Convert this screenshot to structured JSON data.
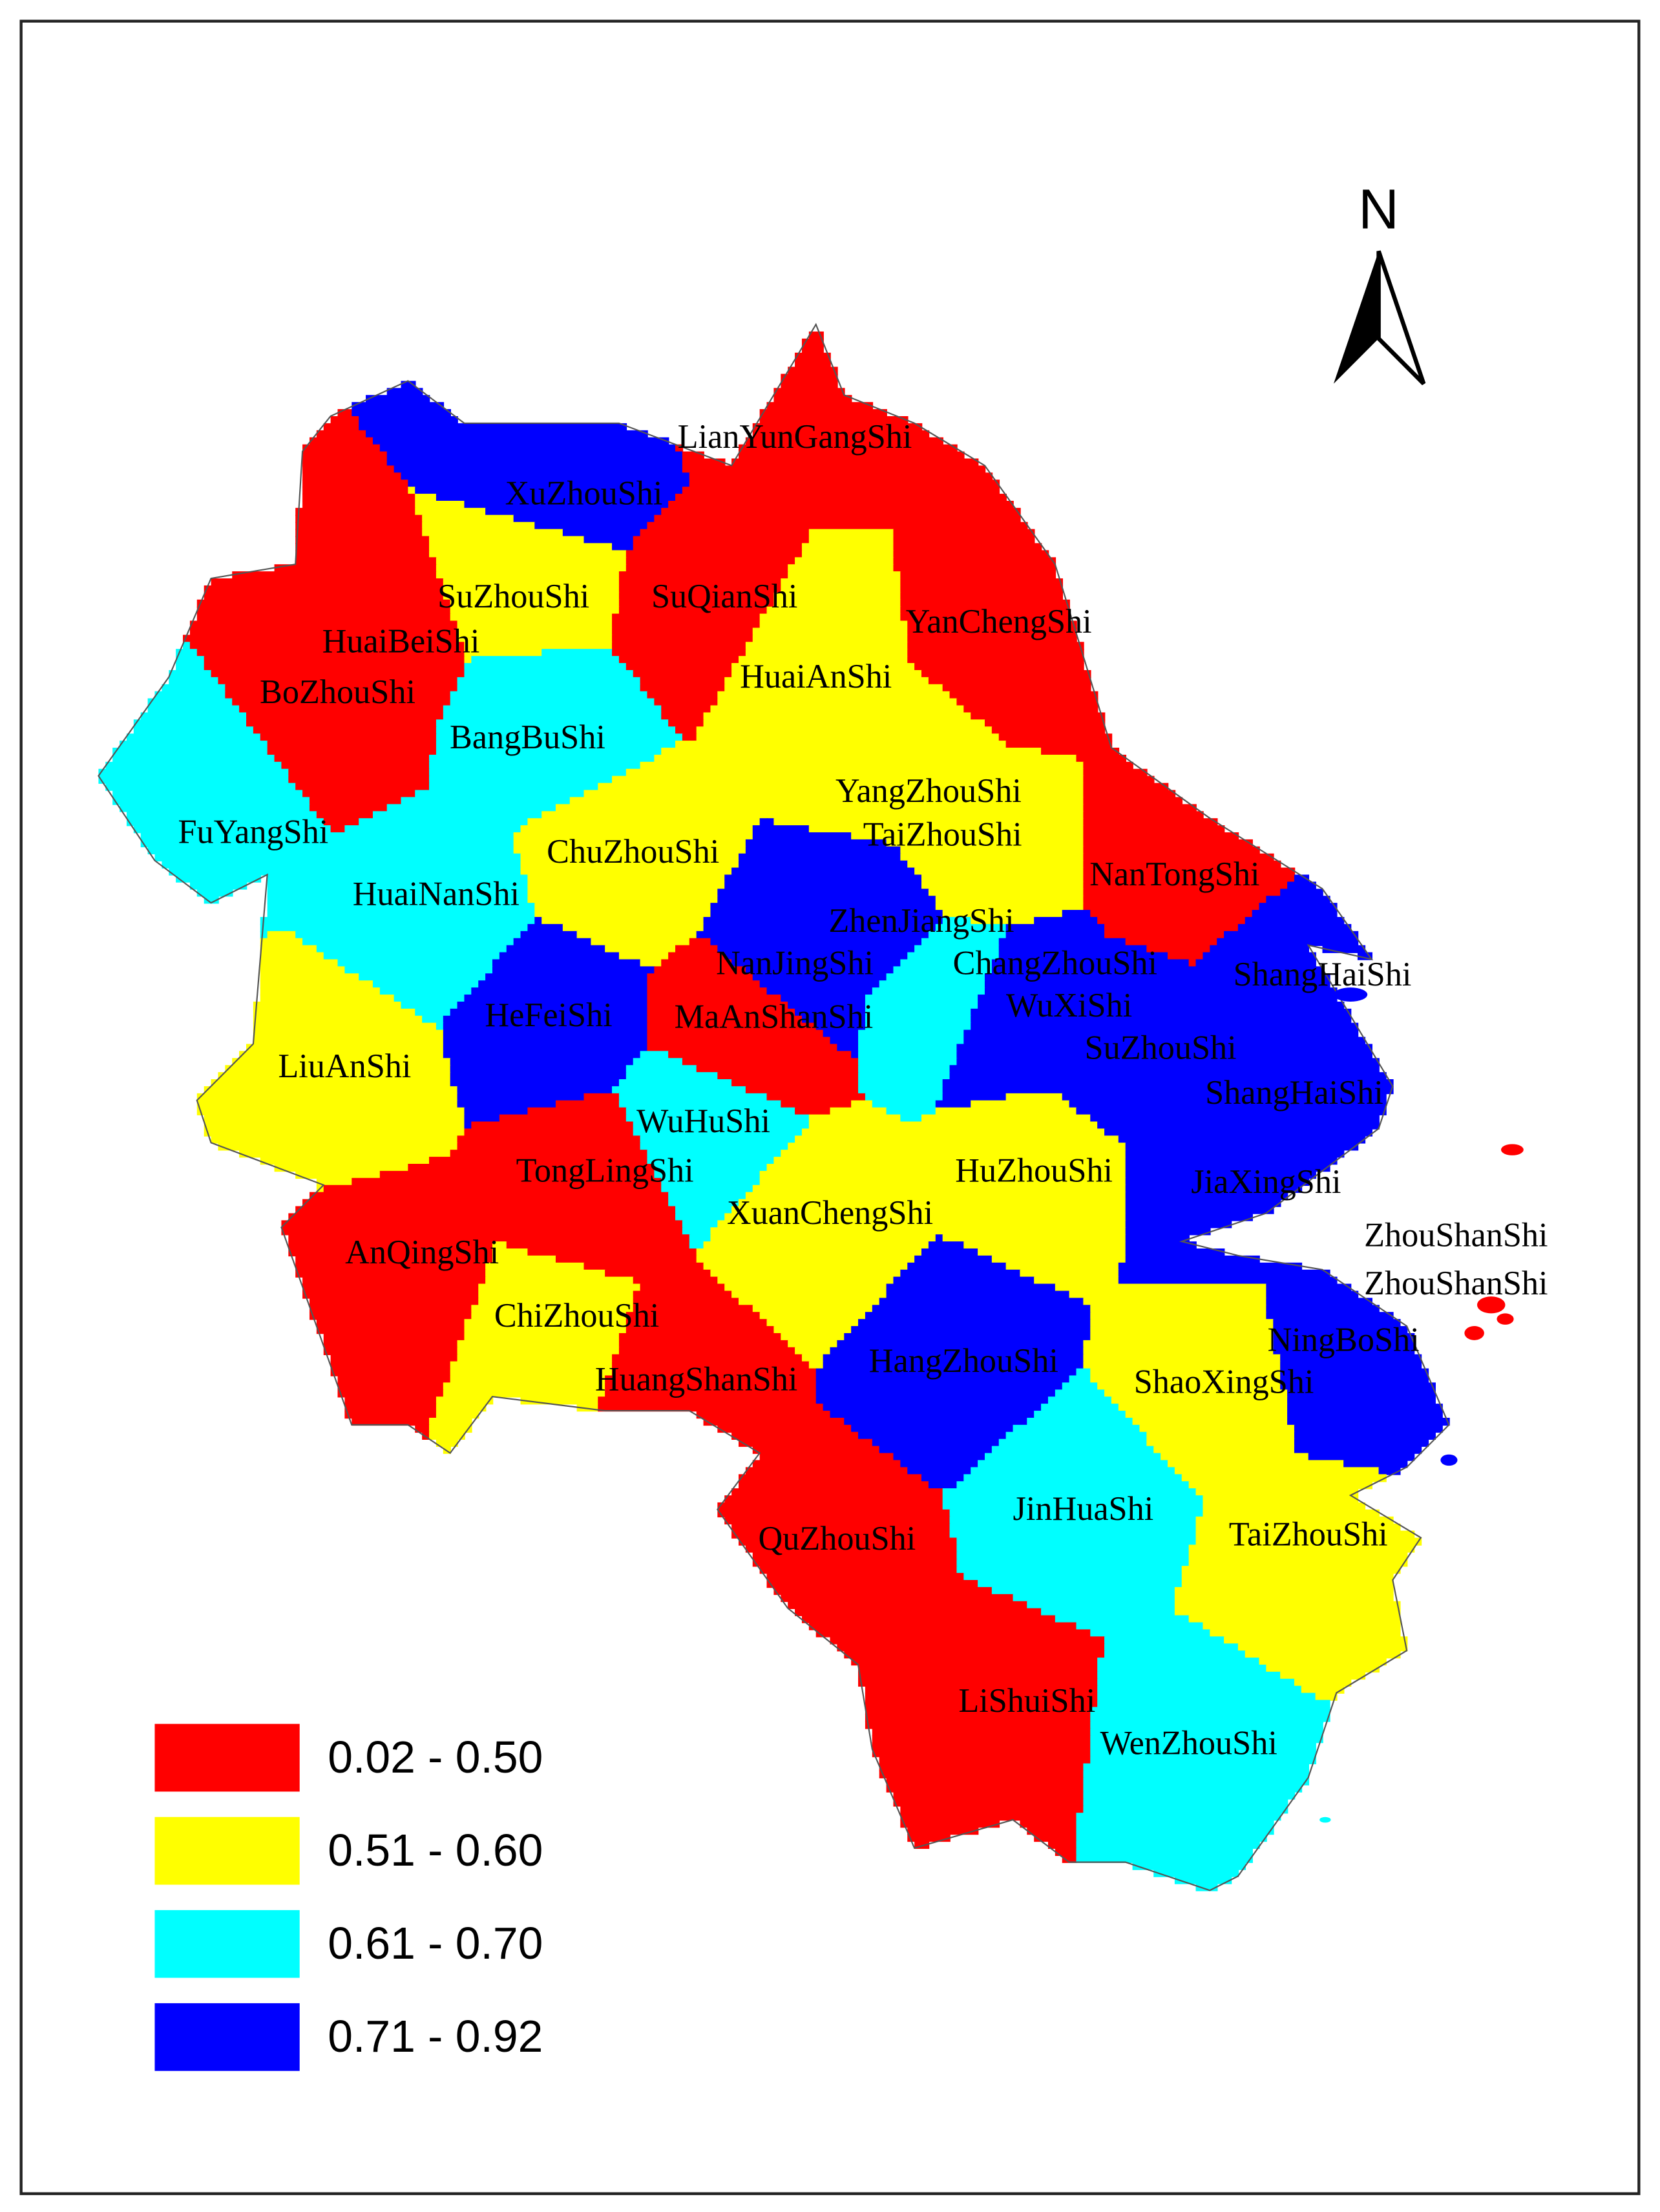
{
  "north": "N",
  "legend": [
    {
      "label": "0.02 - 0.50",
      "color": "#ff0000"
    },
    {
      "label": "0.51 - 0.60",
      "color": "#ffff00"
    },
    {
      "label": "0.61 - 0.70",
      "color": "#00ffff"
    },
    {
      "label": "0.71 - 0.92",
      "color": "#0000ff"
    }
  ],
  "regions": [
    {
      "name": "LianYunGangShi",
      "class": 0
    },
    {
      "name": "XuZhouShi",
      "class": 3
    },
    {
      "name": "SuZhouShi",
      "class": 1
    },
    {
      "name": "SuQianShi",
      "class": 0
    },
    {
      "name": "HuaiBeiShi",
      "class": 0
    },
    {
      "name": "YanChengShi",
      "class": 0
    },
    {
      "name": "HuaiAnShi",
      "class": 1
    },
    {
      "name": "BoZhouShi",
      "class": 0
    },
    {
      "name": "BangBuShi",
      "class": 2
    },
    {
      "name": "YangZhouShi",
      "class": 1
    },
    {
      "name": "FuYangShi",
      "class": 2
    },
    {
      "name": "TaiZhouShi",
      "class": 1
    },
    {
      "name": "ChuZhouShi",
      "class": 1
    },
    {
      "name": "NanTongShi",
      "class": 0
    },
    {
      "name": "HuaiNanShi",
      "class": 2
    },
    {
      "name": "ZhenJiangShi",
      "class": 3
    },
    {
      "name": "NanJingShi",
      "class": 3
    },
    {
      "name": "ChangZhouShi",
      "class": 2
    },
    {
      "name": "ShangHaiShi",
      "class": 3
    },
    {
      "name": "WuXiShi",
      "class": 3
    },
    {
      "name": "HeFeiShi",
      "class": 3
    },
    {
      "name": "MaAnShanShi",
      "class": 0
    },
    {
      "name": "SuZhouShi",
      "class": 3
    },
    {
      "name": "LiuAnShi",
      "class": 1
    },
    {
      "name": "ShangHaiShi",
      "class": 3
    },
    {
      "name": "WuHuShi",
      "class": 2
    },
    {
      "name": "TongLingShi",
      "class": 0
    },
    {
      "name": "HuZhouShi",
      "class": 1
    },
    {
      "name": "JiaXingShi",
      "class": 3
    },
    {
      "name": "XuanChengShi",
      "class": 1
    },
    {
      "name": "ZhouShanShi",
      "class": 0
    },
    {
      "name": "ZhouShanShi",
      "class": 0
    },
    {
      "name": "AnQingShi",
      "class": 0
    },
    {
      "name": "ChiZhouShi",
      "class": 1
    },
    {
      "name": "NingBoShi",
      "class": 3
    },
    {
      "name": "HangZhouShi",
      "class": 3
    },
    {
      "name": "HuangShanShi",
      "class": 0
    },
    {
      "name": "ShaoXingShi",
      "class": 1
    },
    {
      "name": "JinHuaShi",
      "class": 2
    },
    {
      "name": "TaiZhouShi",
      "class": 1
    },
    {
      "name": "QuZhouShi",
      "class": 0
    },
    {
      "name": "LiShuiShi",
      "class": 0
    },
    {
      "name": "WenZhouShi",
      "class": 2
    }
  ]
}
